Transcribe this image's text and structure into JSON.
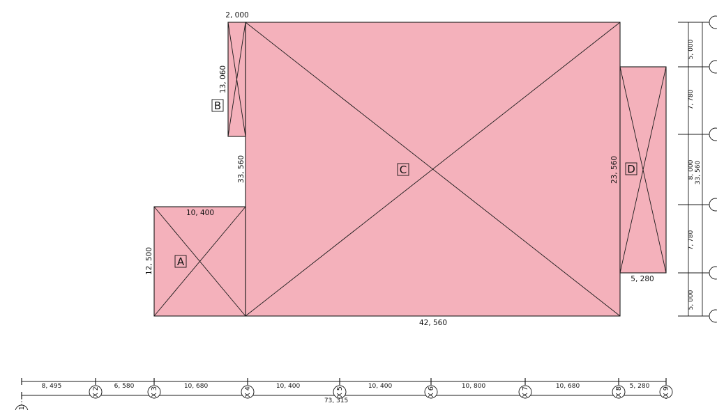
{
  "rooms": {
    "A": {
      "label": "A",
      "width": "10, 400",
      "height": "12, 500"
    },
    "B": {
      "label": "B",
      "width": "2, 000",
      "height": "13, 060"
    },
    "C": {
      "label": "C",
      "width": "42, 560",
      "height": "33, 560"
    },
    "D": {
      "label": "D",
      "width": "5, 280",
      "height": "23, 560"
    }
  },
  "bottom_dims": {
    "segments": [
      "8, 495",
      "6, 580",
      "10, 680",
      "10, 400",
      "10, 400",
      "10, 800",
      "10, 680",
      "5, 280"
    ],
    "total": "73, 315",
    "axes": [
      "X 1",
      "X 2",
      "X 3",
      "X 4",
      "X 5",
      "X 6",
      "X 7",
      "X 8",
      "X 9"
    ]
  },
  "right_dims": {
    "segments": [
      "5, 000",
      "7, 780",
      "8, 000",
      "7, 780",
      "5, 000"
    ],
    "total": "33, 560"
  },
  "colors": {
    "room_fill": "#f4b1bb",
    "line": "#1a1a1a"
  }
}
